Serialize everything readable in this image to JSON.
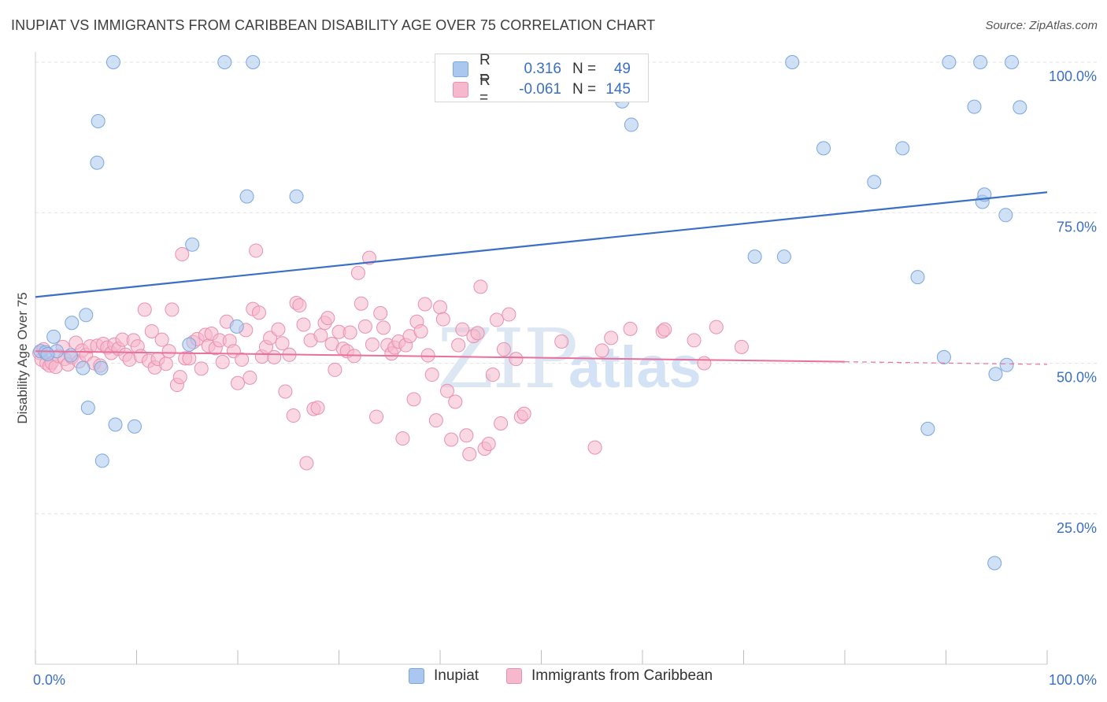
{
  "title": "INUPIAT VS IMMIGRANTS FROM CARIBBEAN DISABILITY AGE OVER 75 CORRELATION CHART",
  "source": "Source: ZipAtlas.com",
  "watermark": "ZIPatlas",
  "colors": {
    "blue_fill": "#aac8ef",
    "blue_stroke": "#7aa6e0",
    "blue_line": "#3a6fc4",
    "pink_fill": "#f6b8cc",
    "pink_stroke": "#e890ad",
    "pink_line": "#e8709a",
    "axis_text": "#3a6fc4",
    "grid": "#e3e3e3"
  },
  "stats": {
    "rows": [
      {
        "series": "Inupiat",
        "r_label": "R =",
        "r_value": "0.316",
        "n_label": "N =",
        "n_value": "49"
      },
      {
        "series": "Immigrants from Caribbean",
        "r_label": "R =",
        "r_value": "-0.061",
        "n_label": "N =",
        "n_value": "145"
      }
    ]
  },
  "legend": {
    "items": [
      "Inupiat",
      "Immigrants from Caribbean"
    ]
  },
  "chart_data": {
    "type": "scatter",
    "title": "INUPIAT VS IMMIGRANTS FROM CARIBBEAN DISABILITY AGE OVER 75 CORRELATION CHART",
    "xlabel": "",
    "ylabel": "Disability Age Over 75",
    "xlim": [
      0,
      100
    ],
    "ylim": [
      0,
      100
    ],
    "x_tick_labels": [
      "0.0%",
      "100.0%"
    ],
    "y_tick_labels": [
      "25.0%",
      "50.0%",
      "75.0%",
      "100.0%"
    ],
    "y_ticks": [
      25,
      50,
      75,
      100
    ],
    "grid": true,
    "legend_position": "bottom",
    "series": [
      {
        "name": "Inupiat",
        "color": "#aac8ef",
        "trend": {
          "x": [
            0,
            100
          ],
          "y": [
            61.0,
            78.4
          ]
        },
        "points": [
          [
            0.5,
            52.0
          ],
          [
            1.0,
            51.8
          ],
          [
            1.8,
            54.4
          ],
          [
            2.1,
            52.0
          ],
          [
            1.2,
            51.5
          ],
          [
            3.5,
            51.3
          ],
          [
            4.7,
            49.2
          ],
          [
            6.5,
            49.2
          ],
          [
            3.6,
            56.7
          ],
          [
            5.0,
            58.0
          ],
          [
            7.7,
            100.0
          ],
          [
            6.2,
            90.2
          ],
          [
            6.1,
            83.3
          ],
          [
            5.2,
            42.6
          ],
          [
            7.9,
            39.8
          ],
          [
            9.8,
            39.5
          ],
          [
            6.6,
            33.8
          ],
          [
            18.7,
            100.0
          ],
          [
            21.5,
            100.0
          ],
          [
            15.5,
            69.7
          ],
          [
            20.9,
            77.7
          ],
          [
            25.8,
            77.7
          ],
          [
            15.2,
            53.1
          ],
          [
            19.9,
            56.1
          ],
          [
            56.6,
            99.0
          ],
          [
            56.9,
            97.4
          ],
          [
            57.5,
            94.4
          ],
          [
            58.0,
            93.5
          ],
          [
            58.9,
            89.6
          ],
          [
            71.1,
            67.7
          ],
          [
            74.0,
            67.7
          ],
          [
            74.8,
            100.0
          ],
          [
            77.9,
            85.7
          ],
          [
            82.9,
            80.1
          ],
          [
            85.7,
            85.7
          ],
          [
            87.2,
            64.3
          ],
          [
            89.8,
            51.0
          ],
          [
            88.2,
            39.1
          ],
          [
            90.3,
            100.0
          ],
          [
            93.4,
            100.0
          ],
          [
            92.8,
            92.6
          ],
          [
            93.6,
            76.8
          ],
          [
            93.8,
            78.0
          ],
          [
            94.9,
            48.2
          ],
          [
            95.9,
            74.6
          ],
          [
            96.0,
            49.7
          ],
          [
            96.5,
            100.0
          ],
          [
            97.3,
            92.5
          ],
          [
            94.8,
            16.8
          ]
        ]
      },
      {
        "name": "Immigrants from Caribbean",
        "color": "#f6b8cc",
        "trend": {
          "x": [
            0,
            100
          ],
          "y": [
            52.0,
            49.8
          ]
        },
        "points": [
          [
            0.4,
            51.7
          ],
          [
            0.6,
            50.6
          ],
          [
            0.8,
            52.3
          ],
          [
            1.1,
            50.0
          ],
          [
            1.4,
            49.6
          ],
          [
            1.6,
            50.1
          ],
          [
            2.0,
            49.4
          ],
          [
            2.3,
            51.2
          ],
          [
            2.7,
            52.7
          ],
          [
            2.9,
            50.7
          ],
          [
            3.2,
            49.8
          ],
          [
            3.6,
            51.0
          ],
          [
            4.0,
            53.4
          ],
          [
            4.3,
            50.3
          ],
          [
            4.6,
            52.1
          ],
          [
            5.0,
            51.4
          ],
          [
            5.4,
            52.8
          ],
          [
            5.8,
            50.0
          ],
          [
            6.1,
            52.9
          ],
          [
            6.4,
            49.6
          ],
          [
            6.7,
            53.2
          ],
          [
            7.1,
            52.6
          ],
          [
            7.5,
            51.7
          ],
          [
            7.8,
            53.1
          ],
          [
            8.2,
            52.4
          ],
          [
            8.6,
            53.9
          ],
          [
            8.9,
            51.4
          ],
          [
            9.3,
            50.6
          ],
          [
            9.7,
            53.8
          ],
          [
            10.1,
            52.8
          ],
          [
            10.4,
            51.2
          ],
          [
            10.8,
            58.9
          ],
          [
            11.2,
            50.4
          ],
          [
            11.5,
            55.3
          ],
          [
            11.8,
            49.3
          ],
          [
            12.1,
            50.7
          ],
          [
            12.5,
            53.9
          ],
          [
            12.9,
            49.9
          ],
          [
            13.2,
            52.0
          ],
          [
            13.5,
            58.9
          ],
          [
            14.0,
            46.4
          ],
          [
            14.3,
            47.7
          ],
          [
            14.5,
            68.1
          ],
          [
            14.8,
            50.8
          ],
          [
            15.2,
            50.8
          ],
          [
            15.6,
            53.5
          ],
          [
            16.0,
            54.0
          ],
          [
            16.4,
            49.1
          ],
          [
            16.8,
            54.7
          ],
          [
            17.1,
            52.9
          ],
          [
            17.4,
            54.9
          ],
          [
            17.8,
            52.5
          ],
          [
            18.2,
            53.8
          ],
          [
            18.5,
            50.2
          ],
          [
            18.9,
            56.9
          ],
          [
            19.2,
            53.7
          ],
          [
            19.6,
            52.0
          ],
          [
            20.0,
            46.7
          ],
          [
            20.4,
            50.6
          ],
          [
            20.8,
            55.5
          ],
          [
            21.2,
            47.6
          ],
          [
            21.5,
            59.0
          ],
          [
            21.8,
            68.7
          ],
          [
            22.1,
            58.4
          ],
          [
            22.4,
            51.1
          ],
          [
            22.8,
            52.7
          ],
          [
            23.2,
            54.2
          ],
          [
            23.6,
            51.0
          ],
          [
            24.0,
            55.6
          ],
          [
            24.4,
            53.3
          ],
          [
            24.7,
            45.3
          ],
          [
            25.1,
            51.4
          ],
          [
            25.5,
            41.3
          ],
          [
            25.8,
            60.0
          ],
          [
            26.1,
            59.6
          ],
          [
            26.5,
            56.4
          ],
          [
            26.8,
            33.4
          ],
          [
            27.2,
            53.8
          ],
          [
            27.5,
            42.4
          ],
          [
            27.9,
            42.6
          ],
          [
            28.2,
            54.6
          ],
          [
            28.6,
            56.7
          ],
          [
            28.9,
            57.5
          ],
          [
            29.3,
            53.2
          ],
          [
            29.6,
            48.9
          ],
          [
            30.0,
            55.2
          ],
          [
            30.4,
            52.4
          ],
          [
            30.8,
            52.0
          ],
          [
            31.1,
            55.1
          ],
          [
            31.5,
            51.2
          ],
          [
            31.9,
            65.0
          ],
          [
            32.2,
            59.9
          ],
          [
            32.6,
            56.1
          ],
          [
            33.0,
            67.5
          ],
          [
            33.3,
            53.1
          ],
          [
            33.7,
            41.1
          ],
          [
            34.1,
            58.3
          ],
          [
            34.4,
            55.9
          ],
          [
            34.8,
            53.0
          ],
          [
            35.2,
            51.6
          ],
          [
            35.5,
            52.6
          ],
          [
            35.9,
            53.6
          ],
          [
            36.3,
            37.5
          ],
          [
            36.6,
            53.0
          ],
          [
            37.0,
            54.5
          ],
          [
            37.4,
            44.0
          ],
          [
            37.7,
            56.9
          ],
          [
            38.1,
            55.3
          ],
          [
            38.5,
            59.8
          ],
          [
            38.8,
            51.3
          ],
          [
            39.2,
            48.1
          ],
          [
            39.6,
            40.5
          ],
          [
            40.0,
            59.3
          ],
          [
            40.3,
            57.3
          ],
          [
            40.7,
            45.4
          ],
          [
            41.1,
            37.3
          ],
          [
            41.5,
            43.6
          ],
          [
            41.8,
            53.0
          ],
          [
            42.2,
            55.6
          ],
          [
            42.6,
            38.0
          ],
          [
            42.9,
            34.9
          ],
          [
            43.3,
            54.5
          ],
          [
            43.7,
            55.0
          ],
          [
            44.0,
            62.7
          ],
          [
            44.4,
            35.8
          ],
          [
            44.8,
            36.6
          ],
          [
            45.2,
            48.1
          ],
          [
            45.6,
            57.2
          ],
          [
            46.0,
            40.0
          ],
          [
            46.3,
            52.3
          ],
          [
            47.5,
            50.7
          ],
          [
            48.0,
            41.1
          ],
          [
            48.3,
            41.6
          ],
          [
            52.0,
            53.6
          ],
          [
            55.3,
            36.0
          ],
          [
            56.0,
            52.1
          ],
          [
            56.9,
            54.2
          ],
          [
            58.8,
            55.7
          ],
          [
            62.0,
            55.3
          ],
          [
            65.1,
            53.8
          ],
          [
            66.1,
            50.0
          ],
          [
            69.8,
            52.7
          ],
          [
            46.8,
            58.1
          ],
          [
            62.2,
            55.6
          ],
          [
            67.3,
            56.0
          ]
        ]
      }
    ]
  }
}
